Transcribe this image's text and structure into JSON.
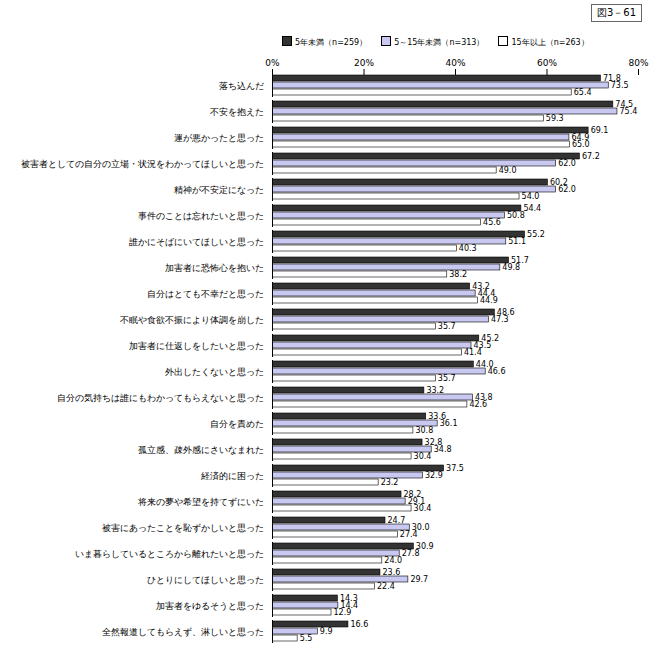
{
  "chart_data": {
    "type": "bar",
    "title": "図3－61",
    "orientation": "horizontal",
    "data_labels": true,
    "grid": false,
    "legend": "top",
    "categories": [
      "落ち込んだ",
      "不安を抱えた",
      "運が悪かったと思った",
      "被害者としての自分の立場・状況をわかってほしいと思った",
      "精神が不安定になった",
      "事件のことは忘れたいと思った",
      "誰かにそばにいてほしいと思った",
      "加害者に恐怖心を抱いた",
      "自分はとても不幸だと思った",
      "不眠や食欲不振により体調を崩した",
      "加害者に仕返しをしたいと思った",
      "外出したくないと思った",
      "自分の気持ちは誰にもわかってもらえないと思った",
      "自分を責めた",
      "孤立感、疎外感にさいなまれた",
      "経済的に困った",
      "将来の夢や希望を持てずにいた",
      "被害にあったことを恥ずかしいと思った",
      "いま暮らしているところから離れたいと思った",
      "ひとりにしてほしいと思った",
      "加害者をゆるそうと思った",
      "全然報道してもらえず、淋しいと思った"
    ],
    "series": [
      {
        "name": "5年未満（n=259）",
        "color": "#333333",
        "values": [
          71.8,
          74.5,
          69.1,
          67.2,
          60.2,
          54.4,
          55.2,
          51.7,
          43.2,
          48.6,
          45.2,
          44.0,
          33.2,
          33.6,
          32.8,
          37.5,
          28.2,
          24.7,
          30.9,
          23.6,
          14.3,
          16.6
        ],
        "value_labels": [
          "71.8",
          "74.5",
          "69.1",
          "67.2",
          "60.2",
          "54.4",
          "55.2",
          "51.7",
          "43.2",
          "48.6",
          "45.2",
          "44.0",
          "33.2",
          "33.6",
          "32.8",
          "37.5",
          "28.2",
          "24.7",
          "30.9",
          "23.6",
          "14.3",
          "16.6"
        ]
      },
      {
        "name": "5～15年未満（n=313）",
        "color": "#c8c8f0",
        "values": [
          73.5,
          75.4,
          64.9,
          62.0,
          62.0,
          50.8,
          51.1,
          49.8,
          44.4,
          47.3,
          43.5,
          46.6,
          43.8,
          36.1,
          34.8,
          32.9,
          29.1,
          30.0,
          27.8,
          29.7,
          14.4,
          9.9
        ],
        "value_labels": [
          "73.5",
          "75.4",
          "64.9",
          "62.0",
          "62.0",
          "50.8",
          "51.1",
          "49.8",
          "44.4",
          "47.3",
          "43.5",
          "46.6",
          "43.8",
          "36.1",
          "34.8",
          "32.9",
          "29.1",
          "30.0",
          "27.8",
          "29.7",
          "14.4",
          "9.9"
        ]
      },
      {
        "name": "15年以上（n=263）",
        "color": "#ffffff",
        "values": [
          65.4,
          59.3,
          65.0,
          49.0,
          54.0,
          45.6,
          40.3,
          38.2,
          44.9,
          35.7,
          41.4,
          35.7,
          42.6,
          30.8,
          30.4,
          23.2,
          30.4,
          27.4,
          24.0,
          22.4,
          12.9,
          5.5
        ],
        "value_labels": [
          "65.4",
          "59.3",
          "65.0",
          "49.0",
          "54.0",
          "45.6",
          "40.3",
          "38.2",
          "44.9",
          "35.7",
          "41.4",
          "35.7",
          "42.6",
          "30.8",
          "30.4",
          "23.2",
          "30.4",
          "27.4",
          "24.0",
          "22.4",
          "12.9",
          "5.5"
        ]
      }
    ],
    "xlim": [
      0,
      80
    ],
    "xticks": [
      {
        "value": 0,
        "label": "0%"
      },
      {
        "value": 20,
        "label": "20%"
      },
      {
        "value": 40,
        "label": "40%"
      },
      {
        "value": 60,
        "label": "60%"
      },
      {
        "value": 80,
        "label": "80%"
      }
    ]
  }
}
